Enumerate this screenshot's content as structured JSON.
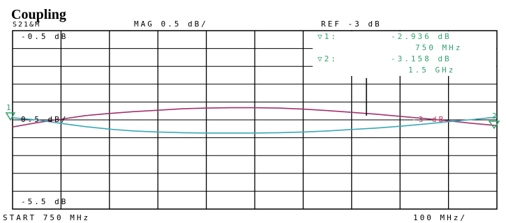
{
  "header": {
    "title": "Coupling",
    "measurement": "S21&M",
    "scale": "MAG  0.5  dB/",
    "reference": "REF  -3  dB"
  },
  "markers": {
    "m1_label": "▽1:",
    "m1_value": "-2.936  dB",
    "m1_freq": "750  MHz",
    "m2_label": "▽2:",
    "m2_value": "-3.158  dB",
    "m2_freq": "1.5  GHz"
  },
  "footer": {
    "start": "START   750  MHz",
    "span": "100  MHz/"
  },
  "chart_data": {
    "type": "line",
    "xlabel": "",
    "ylabel": "",
    "xlim": [
      750,
      1750
    ],
    "ylim": [
      -5.5,
      -0.5
    ],
    "x_unit": "MHz",
    "y_unit": "dB",
    "grid": true,
    "divisions": {
      "x": 10,
      "y": 10
    },
    "axis_labels": {
      "top": "-0.5  dB",
      "middle": "0.5  dB/",
      "bottom": "-5.5  dB",
      "middle_right": "-3  dB"
    },
    "reference_marker": "1",
    "end_marker": "2",
    "series": [
      {
        "color": "#a3306e",
        "x": [
          750,
          800,
          850,
          900,
          950,
          1000,
          1050,
          1100,
          1150,
          1200,
          1250,
          1300,
          1350,
          1400,
          1450,
          1500,
          1550,
          1600,
          1650,
          1700,
          1750
        ],
        "y": [
          -3.2,
          -3.08,
          -2.98,
          -2.88,
          -2.82,
          -2.77,
          -2.73,
          -2.69,
          -2.67,
          -2.66,
          -2.66,
          -2.67,
          -2.7,
          -2.74,
          -2.79,
          -2.84,
          -2.9,
          -2.96,
          -3.03,
          -3.1,
          -3.16
        ]
      },
      {
        "color": "#3aa8b8",
        "x": [
          750,
          800,
          850,
          900,
          950,
          1000,
          1050,
          1100,
          1150,
          1200,
          1250,
          1300,
          1350,
          1400,
          1450,
          1500,
          1550,
          1600,
          1650,
          1700,
          1750
        ],
        "y": [
          -2.94,
          -3.0,
          -3.1,
          -3.19,
          -3.26,
          -3.31,
          -3.34,
          -3.36,
          -3.37,
          -3.37,
          -3.37,
          -3.36,
          -3.34,
          -3.31,
          -3.27,
          -3.23,
          -3.18,
          -3.12,
          -3.05,
          -2.99,
          -2.92
        ]
      }
    ]
  }
}
